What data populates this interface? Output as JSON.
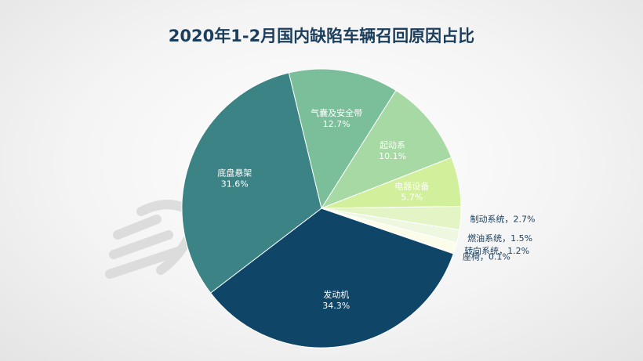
{
  "chart_data": {
    "type": "pie",
    "title": "2020年1-2月国内缺陷车辆召回原因占比",
    "start_category": "发动机",
    "slices": [
      {
        "label": "发动机",
        "value": 34.3,
        "value_text": "34.3%",
        "color": "#0f4566",
        "text_color": "#ffffff",
        "label_position": "inside"
      },
      {
        "label": "底盘悬架",
        "value": 31.6,
        "value_text": "31.6%",
        "color": "#3c8385",
        "text_color": "#ffffff",
        "label_position": "inside"
      },
      {
        "label": "气囊及安全带",
        "value": 12.7,
        "value_text": "12.7%",
        "color": "#7bbf9a",
        "text_color": "#ffffff",
        "label_position": "inside"
      },
      {
        "label": "起动系",
        "value": 10.1,
        "value_text": "10.1%",
        "color": "#a6d9a3",
        "text_color": "#ffffff",
        "label_position": "inside"
      },
      {
        "label": "电器设备",
        "value": 5.7,
        "value_text": "5.7%",
        "color": "#d2f09c",
        "text_color": "#ffffff",
        "label_position": "inside"
      },
      {
        "label": "制动系统",
        "value": 2.7,
        "value_text": "2.7%",
        "color": "#e3f5c4",
        "text_color": "#1a3e5c",
        "label_position": "outside"
      },
      {
        "label": "燃油系统",
        "value": 1.5,
        "value_text": "1.5%",
        "color": "#eef8e0",
        "text_color": "#1a3e5c",
        "label_position": "outside"
      },
      {
        "label": "转向系统",
        "value": 1.2,
        "value_text": "1.2%",
        "color": "#fbfde9",
        "text_color": "#1a3e5c",
        "label_position": "outside"
      },
      {
        "label": "座椅",
        "value": 0.1,
        "value_text": "0.1%",
        "color": "#e87a3c",
        "text_color": "#1a3e5c",
        "label_position": "outside"
      }
    ],
    "separator": "，",
    "legend": "none"
  }
}
